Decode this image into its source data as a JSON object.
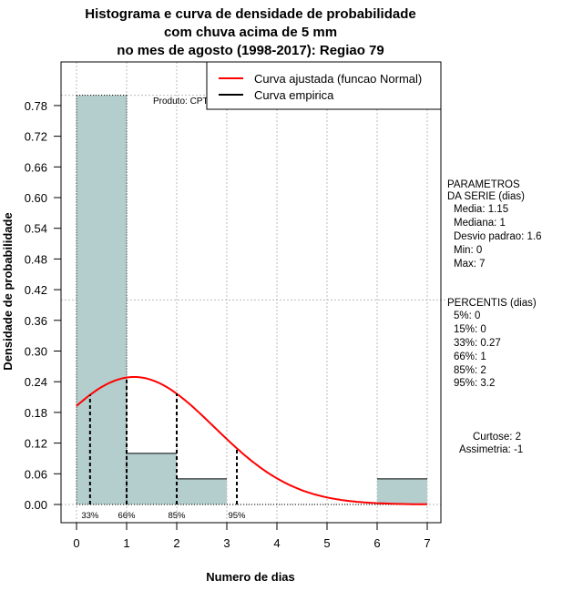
{
  "chart_data": {
    "type": "bar",
    "title": [
      "Histograma e curva de densidade de probabilidade",
      "com chuva acima de 5 mm",
      "no mes de agosto (1998-2017): Regiao 79"
    ],
    "xlabel": "Numero de dias",
    "ylabel": "Densidade de probabilidade",
    "xlim": [
      0,
      7
    ],
    "ylim": [
      0,
      0.8
    ],
    "xticks": [
      "0",
      "1",
      "2",
      "3",
      "4",
      "5",
      "6",
      "7"
    ],
    "yticks": [
      "0.00",
      "0.06",
      "0.12",
      "0.18",
      "0.24",
      "0.30",
      "0.36",
      "0.42",
      "0.48",
      "0.54",
      "0.60",
      "0.66",
      "0.72",
      "0.78"
    ],
    "bins": [
      {
        "from": 0,
        "to": 1,
        "density": 0.8
      },
      {
        "from": 1,
        "to": 2,
        "density": 0.1
      },
      {
        "from": 2,
        "to": 3,
        "density": 0.05
      },
      {
        "from": 3,
        "to": 4,
        "density": 0
      },
      {
        "from": 4,
        "to": 5,
        "density": 0
      },
      {
        "from": 5,
        "to": 6,
        "density": 0
      },
      {
        "from": 6,
        "to": 7,
        "density": 0.05
      }
    ],
    "normal_curve": {
      "mean": 1.15,
      "sd": 1.6
    },
    "percentile_markers": [
      {
        "label": "33%",
        "x": 0.27
      },
      {
        "label": "66%",
        "x": 1
      },
      {
        "label": "85%",
        "x": 2
      },
      {
        "label": "95%",
        "x": 3.2
      }
    ],
    "legend": [
      "Curva ajustada (funcao Normal)",
      "Curva empirica"
    ],
    "legend_position": "top-right",
    "credit": "Produto: CPTEC/INPE",
    "colors": {
      "bar": "#b4cdcd",
      "curve": "#ff0000"
    }
  },
  "side_panel": {
    "params_title1": "PARAMETROS",
    "params_title2": "DA SERIE (dias)",
    "params": [
      "Media: 1.15",
      "Mediana: 1",
      "Desvio padrao: 1.6",
      "Min: 0",
      "Max: 7"
    ],
    "percentis_title": "PERCENTIS (dias)",
    "percentis": [
      "5%: 0",
      "15%: 0",
      "33%: 0.27",
      "66%: 1",
      "85%: 2",
      "95%: 3.2"
    ],
    "curtose": "Curtose: 2",
    "assimetria": "Assimetria: -1"
  }
}
